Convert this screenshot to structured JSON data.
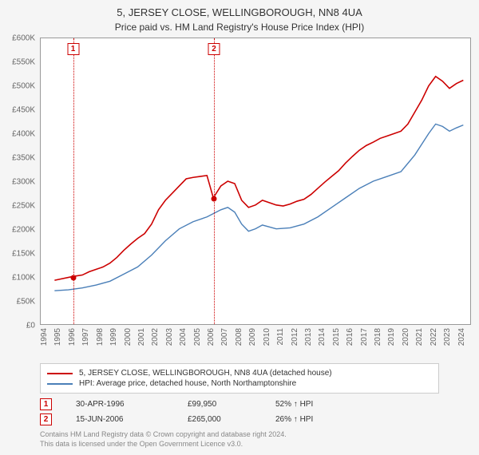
{
  "title": "5, JERSEY CLOSE, WELLINGBOROUGH, NN8 4UA",
  "subtitle": "Price paid vs. HM Land Registry's House Price Index (HPI)",
  "chart": {
    "type": "line",
    "background_color": "#ffffff",
    "container_bg": "#f5f5f5",
    "border_color": "#999999",
    "ylim": [
      0,
      600000
    ],
    "ytick_step": 50000,
    "yticks": [
      "£0",
      "£50K",
      "£100K",
      "£150K",
      "£200K",
      "£250K",
      "£300K",
      "£350K",
      "£400K",
      "£450K",
      "£500K",
      "£550K",
      "£600K"
    ],
    "xlim": [
      1994,
      2025
    ],
    "xticks": [
      "1994",
      "1995",
      "1996",
      "1997",
      "1998",
      "1999",
      "2000",
      "2001",
      "2002",
      "2003",
      "2004",
      "2005",
      "2006",
      "2007",
      "2008",
      "2009",
      "2010",
      "2011",
      "2012",
      "2013",
      "2014",
      "2015",
      "2016",
      "2017",
      "2018",
      "2019",
      "2020",
      "2021",
      "2022",
      "2023",
      "2024"
    ],
    "series": [
      {
        "name": "5, JERSEY CLOSE, WELLINGBOROUGH, NN8 4UA (detached house)",
        "color": "#cc0000",
        "line_width": 1.6,
        "data": [
          {
            "x": 1995.0,
            "y": 92000
          },
          {
            "x": 1996.33,
            "y": 99950
          },
          {
            "x": 1997.0,
            "y": 103000
          },
          {
            "x": 1997.5,
            "y": 110000
          },
          {
            "x": 1998.0,
            "y": 115000
          },
          {
            "x": 1998.5,
            "y": 120000
          },
          {
            "x": 1999.0,
            "y": 128000
          },
          {
            "x": 1999.5,
            "y": 140000
          },
          {
            "x": 2000.0,
            "y": 155000
          },
          {
            "x": 2000.5,
            "y": 168000
          },
          {
            "x": 2001.0,
            "y": 180000
          },
          {
            "x": 2001.5,
            "y": 190000
          },
          {
            "x": 2002.0,
            "y": 210000
          },
          {
            "x": 2002.5,
            "y": 240000
          },
          {
            "x": 2003.0,
            "y": 260000
          },
          {
            "x": 2003.5,
            "y": 275000
          },
          {
            "x": 2004.0,
            "y": 290000
          },
          {
            "x": 2004.5,
            "y": 305000
          },
          {
            "x": 2005.0,
            "y": 308000
          },
          {
            "x": 2005.5,
            "y": 310000
          },
          {
            "x": 2006.0,
            "y": 312000
          },
          {
            "x": 2006.46,
            "y": 265000
          },
          {
            "x": 2007.0,
            "y": 290000
          },
          {
            "x": 2007.5,
            "y": 300000
          },
          {
            "x": 2008.0,
            "y": 295000
          },
          {
            "x": 2008.5,
            "y": 260000
          },
          {
            "x": 2009.0,
            "y": 245000
          },
          {
            "x": 2009.5,
            "y": 250000
          },
          {
            "x": 2010.0,
            "y": 260000
          },
          {
            "x": 2010.5,
            "y": 255000
          },
          {
            "x": 2011.0,
            "y": 250000
          },
          {
            "x": 2011.5,
            "y": 248000
          },
          {
            "x": 2012.0,
            "y": 252000
          },
          {
            "x": 2012.5,
            "y": 258000
          },
          {
            "x": 2013.0,
            "y": 262000
          },
          {
            "x": 2013.5,
            "y": 272000
          },
          {
            "x": 2014.0,
            "y": 285000
          },
          {
            "x": 2014.5,
            "y": 298000
          },
          {
            "x": 2015.0,
            "y": 310000
          },
          {
            "x": 2015.5,
            "y": 322000
          },
          {
            "x": 2016.0,
            "y": 338000
          },
          {
            "x": 2016.5,
            "y": 352000
          },
          {
            "x": 2017.0,
            "y": 365000
          },
          {
            "x": 2017.5,
            "y": 375000
          },
          {
            "x": 2018.0,
            "y": 382000
          },
          {
            "x": 2018.5,
            "y": 390000
          },
          {
            "x": 2019.0,
            "y": 395000
          },
          {
            "x": 2019.5,
            "y": 400000
          },
          {
            "x": 2020.0,
            "y": 405000
          },
          {
            "x": 2020.5,
            "y": 420000
          },
          {
            "x": 2021.0,
            "y": 445000
          },
          {
            "x": 2021.5,
            "y": 470000
          },
          {
            "x": 2022.0,
            "y": 500000
          },
          {
            "x": 2022.5,
            "y": 520000
          },
          {
            "x": 2023.0,
            "y": 510000
          },
          {
            "x": 2023.5,
            "y": 495000
          },
          {
            "x": 2024.0,
            "y": 505000
          },
          {
            "x": 2024.5,
            "y": 512000
          }
        ]
      },
      {
        "name": "HPI: Average price, detached house, North Northamptonshire",
        "color": "#4a7fb8",
        "line_width": 1.4,
        "data": [
          {
            "x": 1995.0,
            "y": 70000
          },
          {
            "x": 1996.0,
            "y": 72000
          },
          {
            "x": 1997.0,
            "y": 76000
          },
          {
            "x": 1998.0,
            "y": 82000
          },
          {
            "x": 1999.0,
            "y": 90000
          },
          {
            "x": 2000.0,
            "y": 105000
          },
          {
            "x": 2001.0,
            "y": 120000
          },
          {
            "x": 2002.0,
            "y": 145000
          },
          {
            "x": 2003.0,
            "y": 175000
          },
          {
            "x": 2004.0,
            "y": 200000
          },
          {
            "x": 2005.0,
            "y": 215000
          },
          {
            "x": 2006.0,
            "y": 225000
          },
          {
            "x": 2007.0,
            "y": 240000
          },
          {
            "x": 2007.5,
            "y": 245000
          },
          {
            "x": 2008.0,
            "y": 235000
          },
          {
            "x": 2008.5,
            "y": 210000
          },
          {
            "x": 2009.0,
            "y": 195000
          },
          {
            "x": 2009.5,
            "y": 200000
          },
          {
            "x": 2010.0,
            "y": 208000
          },
          {
            "x": 2011.0,
            "y": 200000
          },
          {
            "x": 2012.0,
            "y": 202000
          },
          {
            "x": 2013.0,
            "y": 210000
          },
          {
            "x": 2014.0,
            "y": 225000
          },
          {
            "x": 2015.0,
            "y": 245000
          },
          {
            "x": 2016.0,
            "y": 265000
          },
          {
            "x": 2017.0,
            "y": 285000
          },
          {
            "x": 2018.0,
            "y": 300000
          },
          {
            "x": 2019.0,
            "y": 310000
          },
          {
            "x": 2020.0,
            "y": 320000
          },
          {
            "x": 2021.0,
            "y": 355000
          },
          {
            "x": 2022.0,
            "y": 400000
          },
          {
            "x": 2022.5,
            "y": 420000
          },
          {
            "x": 2023.0,
            "y": 415000
          },
          {
            "x": 2023.5,
            "y": 405000
          },
          {
            "x": 2024.0,
            "y": 412000
          },
          {
            "x": 2024.5,
            "y": 418000
          }
        ]
      }
    ],
    "markers": [
      {
        "n": "1",
        "x": 1996.33,
        "y": 99950,
        "date": "30-APR-1996",
        "price": "£99,950",
        "pct": "52% ↑ HPI",
        "color": "#cc0000"
      },
      {
        "n": "2",
        "x": 2006.46,
        "y": 265000,
        "date": "15-JUN-2006",
        "price": "£265,000",
        "pct": "26% ↑ HPI",
        "color": "#cc0000"
      }
    ]
  },
  "legend": {
    "items": [
      {
        "label": "5, JERSEY CLOSE, WELLINGBOROUGH, NN8 4UA (detached house)",
        "color": "#cc0000"
      },
      {
        "label": "HPI: Average price, detached house, North Northamptonshire",
        "color": "#4a7fb8"
      }
    ]
  },
  "footer": {
    "line1": "Contains HM Land Registry data © Crown copyright and database right 2024.",
    "line2": "This data is licensed under the Open Government Licence v3.0."
  }
}
